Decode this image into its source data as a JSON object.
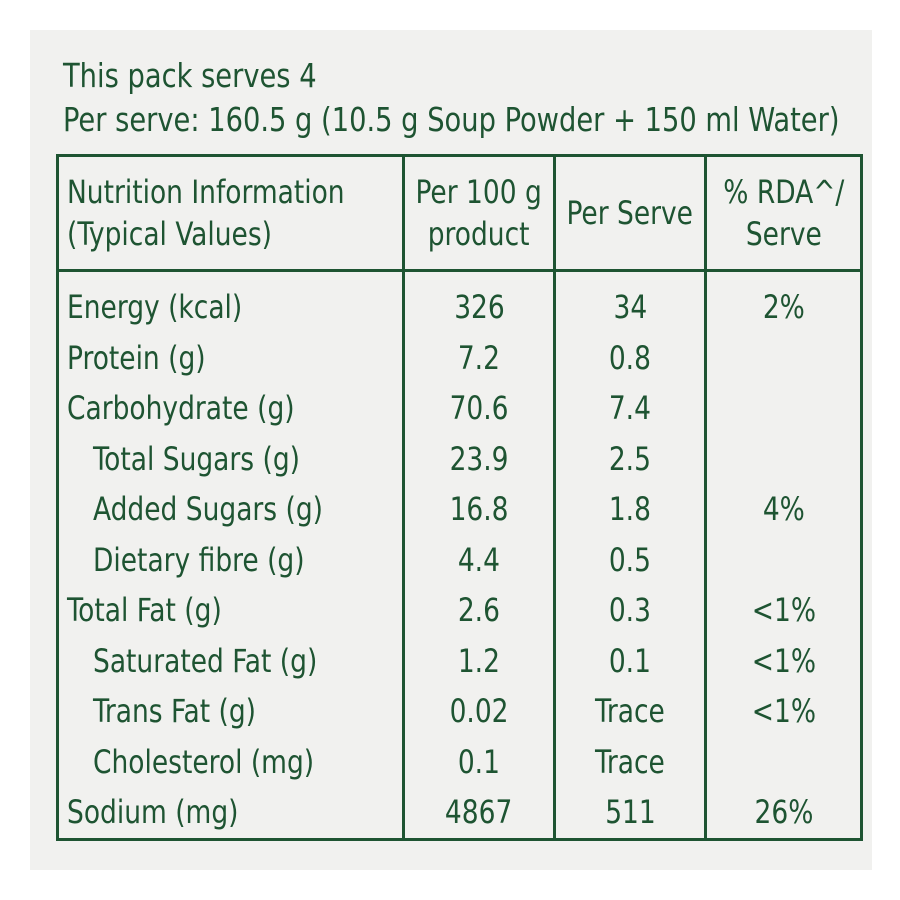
{
  "intro": {
    "line1": "This pack serves 4",
    "line2": "Per serve: 160.5 g (10.5 g Soup Powder + 150 ml Water)"
  },
  "table": {
    "headers": [
      {
        "line1": "Nutrition Information",
        "line2": "(Typical Values)"
      },
      {
        "line1": "Per 100 g",
        "line2": "product"
      },
      {
        "line1": "Per Serve",
        "line2": ""
      },
      {
        "line1": "% RDA^/",
        "line2": "Serve"
      }
    ],
    "rows": [
      {
        "name": "Energy (kcal)",
        "per100": "326",
        "perServe": "34",
        "rda": "2%"
      },
      {
        "name": "Protein (g)",
        "per100": "7.2",
        "perServe": "0.8",
        "rda": ""
      },
      {
        "name": "Carbohydrate (g)",
        "per100": "70.6",
        "perServe": "7.4",
        "rda": ""
      },
      {
        "name": "Total Sugars (g)",
        "per100": "23.9",
        "perServe": "2.5",
        "rda": ""
      },
      {
        "name": "Added Sugars (g)",
        "per100": "16.8",
        "perServe": "1.8",
        "rda": "4%"
      },
      {
        "name": "Dietary fibre (g)",
        "per100": "4.4",
        "perServe": "0.5",
        "rda": ""
      },
      {
        "name": "Total Fat (g)",
        "per100": "2.6",
        "perServe": "0.3",
        "rda": "<1%"
      },
      {
        "name": "Saturated Fat (g)",
        "per100": "1.2",
        "perServe": "0.1",
        "rda": "<1%"
      },
      {
        "name": "Trans Fat (g)",
        "per100": "0.02",
        "perServe": "Trace",
        "rda": "<1%"
      },
      {
        "name": "Cholesterol (mg)",
        "per100": "0.1",
        "perServe": "Trace",
        "rda": ""
      },
      {
        "name": "Sodium (mg)",
        "per100": "4867",
        "perServe": "511",
        "rda": "26%"
      }
    ]
  },
  "colors": {
    "text": "#1e5432",
    "panel": "#f1f1ef",
    "border": "#1e5432"
  }
}
